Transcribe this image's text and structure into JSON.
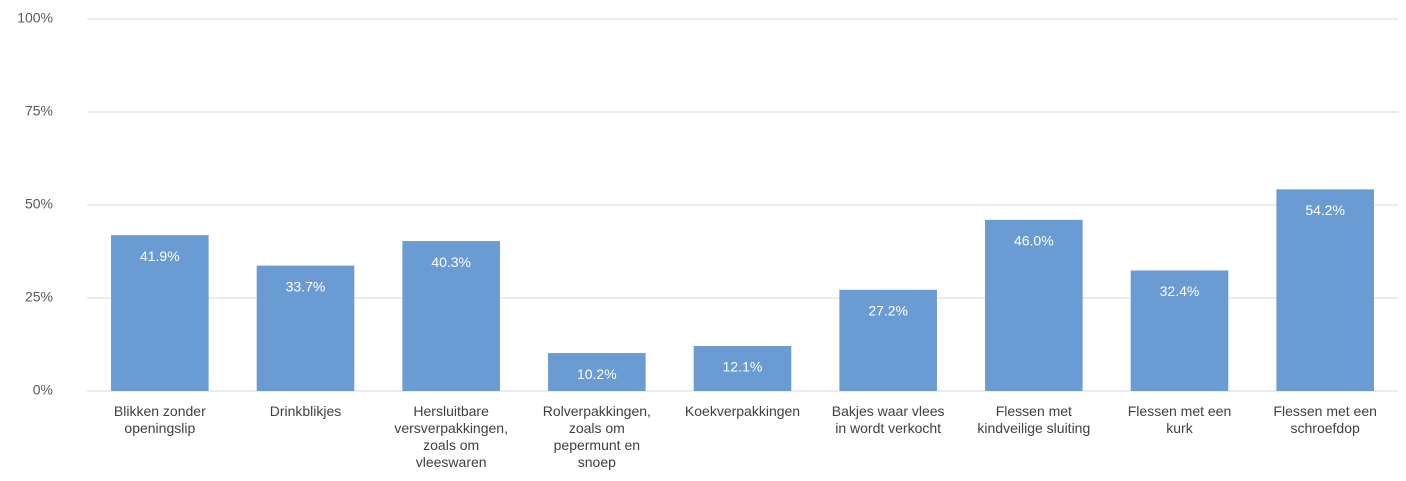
{
  "chart_data": {
    "type": "bar",
    "categories": [
      "Blikken zonder openingslip",
      "Drinkblikjes",
      "Hersluitbare versverpakkingen, zoals om vleeswaren",
      "Rolverpakkingen, zoals om pepermunt en snoep",
      "Koekverpakkingen",
      "Bakjes waar vlees in wordt verkocht",
      "Flessen met kindveilige sluiting",
      "Flessen met een kurk",
      "Flessen met een schroefdop"
    ],
    "values": [
      41.9,
      33.7,
      40.3,
      10.2,
      12.1,
      27.2,
      46.0,
      32.4,
      54.2
    ],
    "value_labels": [
      "41.9%",
      "33.7%",
      "40.3%",
      "10.2%",
      "12.1%",
      "27.2%",
      "46.0%",
      "32.4%",
      "54.2%"
    ],
    "color": "#6a9bd3",
    "ylim": [
      0,
      100
    ],
    "yticks": [
      {
        "value": 0,
        "label": "0%"
      },
      {
        "value": 25,
        "label": "25%"
      },
      {
        "value": 50,
        "label": "50%"
      },
      {
        "value": 75,
        "label": "75%"
      },
      {
        "value": 100,
        "label": "100%"
      }
    ],
    "grid": true
  }
}
